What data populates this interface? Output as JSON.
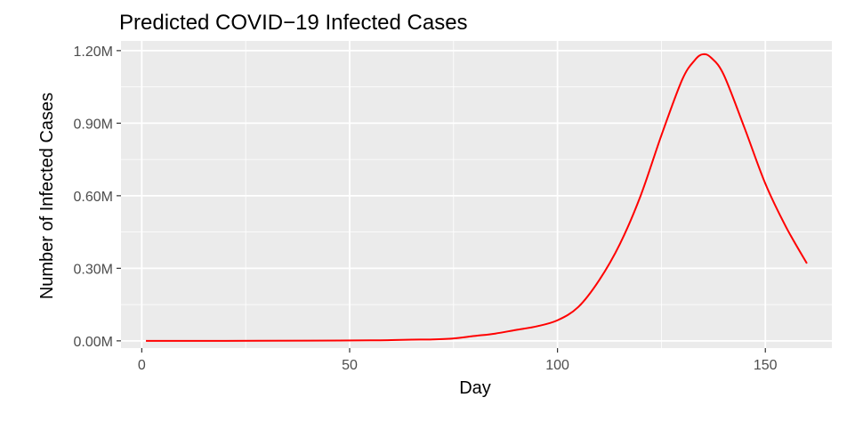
{
  "chart_data": {
    "type": "line",
    "title": "Predicted COVID−19 Infected Cases",
    "xlabel": "Day",
    "ylabel": "Number of Infected Cases",
    "xlim": [
      -5,
      166
    ],
    "ylim": [
      -30000,
      1240000
    ],
    "x_ticks": [
      0,
      50,
      100,
      150
    ],
    "x_tick_labels": [
      "0",
      "50",
      "100",
      "150"
    ],
    "y_ticks": [
      0,
      300000,
      600000,
      900000,
      1200000
    ],
    "y_tick_labels": [
      "0.00M",
      "0.30M",
      "0.60M",
      "0.90M",
      "1.20M"
    ],
    "grid": true,
    "colors": {
      "panel_background": "#EBEBEB",
      "grid": "#FFFFFF",
      "line": "#FF0000"
    },
    "series": [
      {
        "color": "#FF0000",
        "x": [
          1,
          20,
          40,
          55,
          60,
          65,
          70,
          75,
          80,
          85,
          90,
          95,
          100,
          105,
          110,
          115,
          120,
          125,
          130,
          133,
          135,
          137,
          140,
          145,
          150,
          155,
          160
        ],
        "y": [
          0,
          0,
          1000,
          2000,
          3000,
          5000,
          6000,
          10000,
          20000,
          30000,
          45000,
          60000,
          85000,
          140000,
          250000,
          400000,
          600000,
          850000,
          1080000,
          1160000,
          1185000,
          1170000,
          1100000,
          880000,
          650000,
          470000,
          320000
        ]
      }
    ]
  }
}
